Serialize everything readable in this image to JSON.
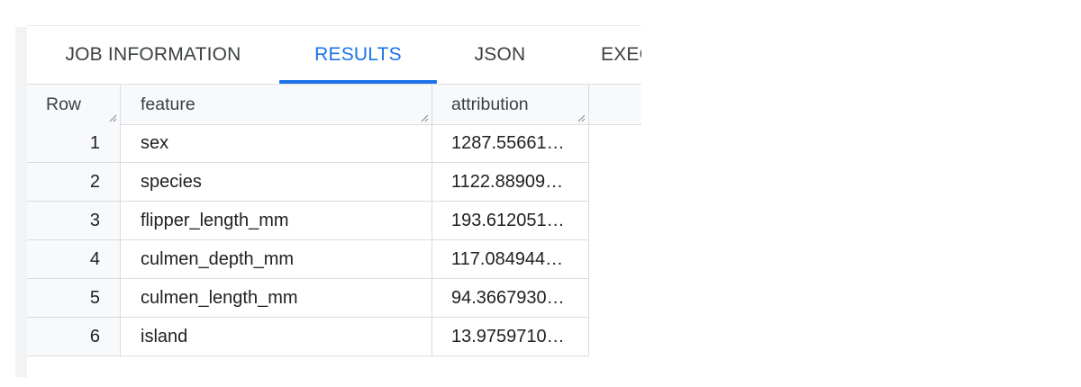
{
  "tabs": [
    {
      "label": "JOB INFORMATION",
      "active": false
    },
    {
      "label": "RESULTS",
      "active": true
    },
    {
      "label": "JSON",
      "active": false
    },
    {
      "label": "EXEC",
      "active": false
    }
  ],
  "table": {
    "columns": [
      "Row",
      "feature",
      "attribution"
    ],
    "rows": [
      {
        "row": "1",
        "feature": "sex",
        "attribution": "1287.55661…"
      },
      {
        "row": "2",
        "feature": "species",
        "attribution": "1122.88909…"
      },
      {
        "row": "3",
        "feature": "flipper_length_mm",
        "attribution": "193.612051…"
      },
      {
        "row": "4",
        "feature": "culmen_depth_mm",
        "attribution": "117.084944…"
      },
      {
        "row": "5",
        "feature": "culmen_length_mm",
        "attribution": "94.3667930…"
      },
      {
        "row": "6",
        "feature": "island",
        "attribution": "13.9759710…"
      }
    ]
  },
  "colors": {
    "accent": "#1a73e8",
    "header_bg": "#f8f9fa",
    "border": "#dadce0"
  }
}
